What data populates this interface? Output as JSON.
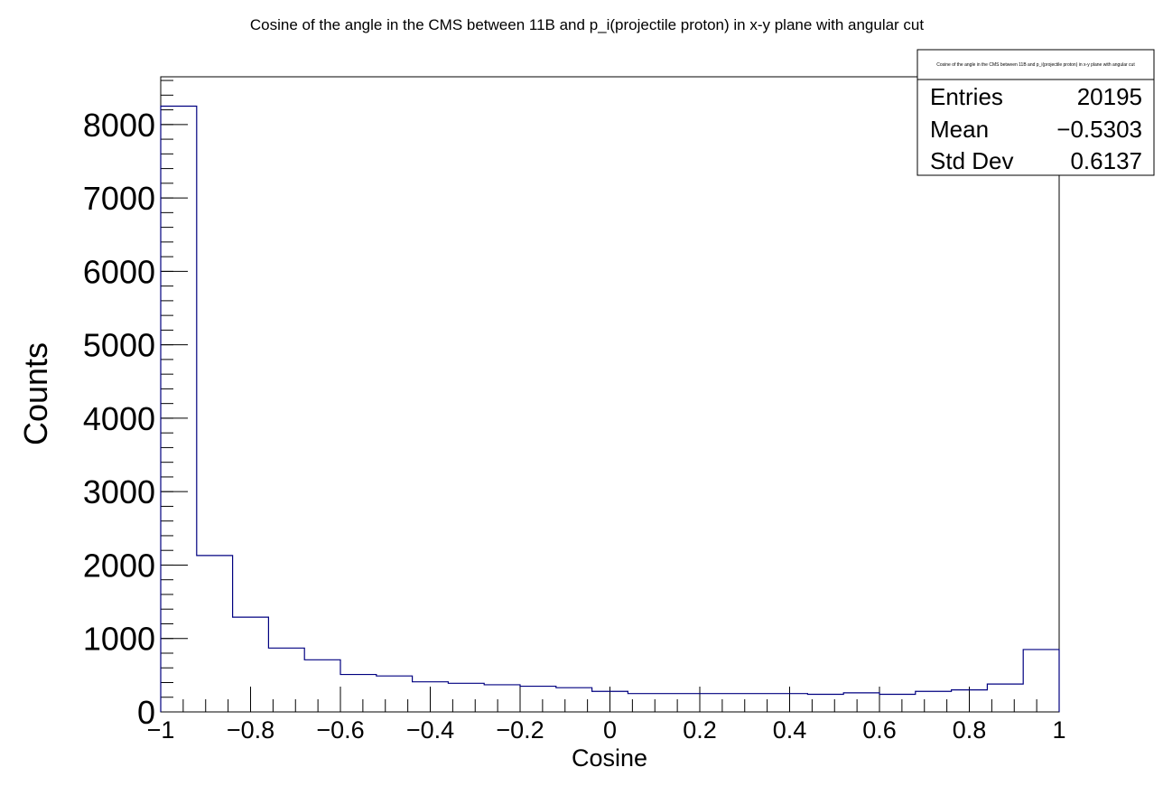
{
  "chart_data": {
    "type": "bar",
    "title": "Cosine of the angle in the CMS between 11B and p_i(projectile proton) in x-y plane with angular cut",
    "xlabel": "Cosine",
    "ylabel": "Counts",
    "xlim": [
      -1,
      1
    ],
    "ylim": [
      0,
      8650
    ],
    "grid": false,
    "line_color": "#000080",
    "x_ticks": [
      -1,
      -0.8,
      -0.6,
      -0.4,
      -0.2,
      0,
      0.2,
      0.4,
      0.6,
      0.8,
      1
    ],
    "x_tick_labels": [
      "−1",
      "−0.8",
      "−0.6",
      "−0.4",
      "−0.2",
      "0",
      "0.2",
      "0.4",
      "0.6",
      "0.8",
      "1"
    ],
    "y_ticks": [
      0,
      1000,
      2000,
      3000,
      4000,
      5000,
      6000,
      7000,
      8000
    ],
    "y_tick_labels": [
      "0",
      "1000",
      "2000",
      "3000",
      "4000",
      "5000",
      "6000",
      "7000",
      "8000"
    ],
    "bin_edges": [
      -1,
      -0.92,
      -0.84,
      -0.76,
      -0.68,
      -0.6,
      -0.52,
      -0.44,
      -0.36,
      -0.28,
      -0.2,
      -0.12,
      -0.04,
      0.04,
      0.12,
      0.2,
      0.28,
      0.36,
      0.44,
      0.52,
      0.6,
      0.68,
      0.76,
      0.84,
      0.92,
      1
    ],
    "values": [
      8250,
      2130,
      1290,
      870,
      710,
      510,
      490,
      410,
      390,
      370,
      350,
      330,
      280,
      250,
      250,
      250,
      250,
      250,
      240,
      260,
      240,
      280,
      300,
      380,
      850
    ]
  },
  "stats_box": {
    "title": "Cosine of the angle in the CMS between 11B and p_i(projectile proton) in x-y plane with angular cut",
    "legend_placement": "top-right",
    "rows": [
      {
        "label": "Entries",
        "value": "20195"
      },
      {
        "label": "Mean",
        "value": "−0.5303"
      },
      {
        "label": "Std Dev",
        "value": "0.6137"
      }
    ]
  }
}
